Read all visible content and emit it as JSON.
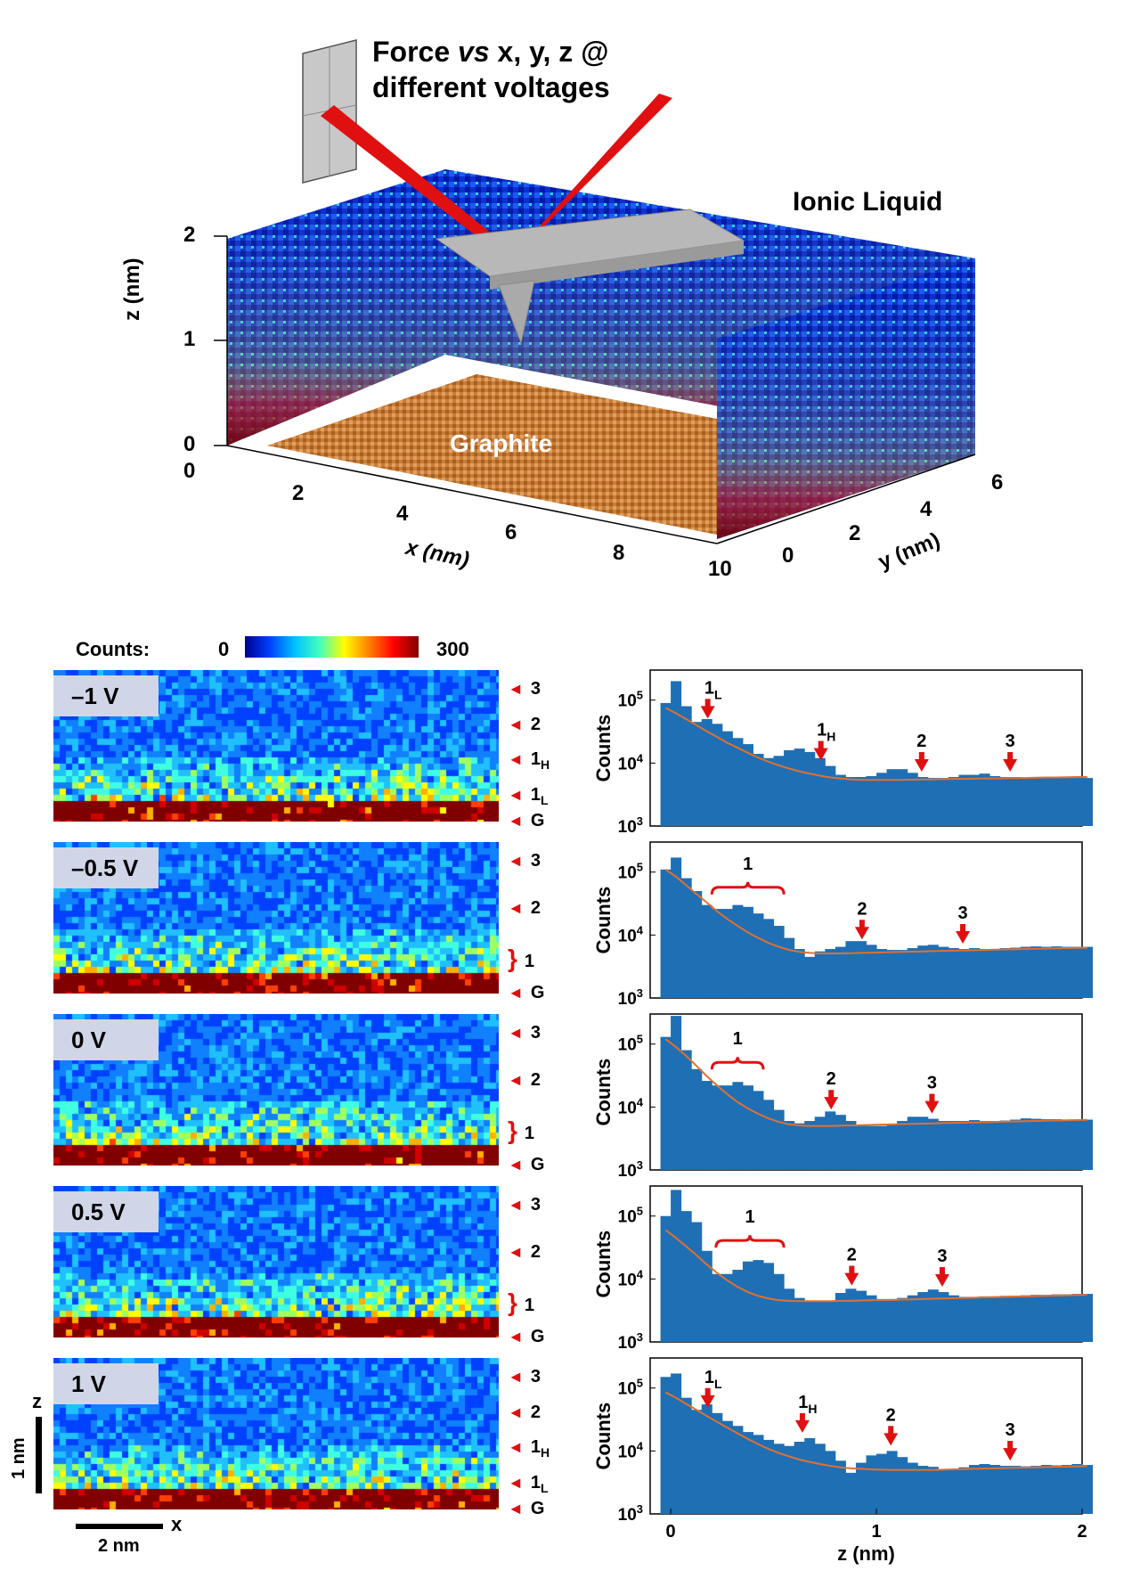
{
  "top": {
    "title_line1": "Force ",
    "title_vs": "vs",
    "title_line1_rest": " x, y, z @",
    "title_line2": "different voltages",
    "ionic_label": "Ionic Liquid",
    "graphite_label": "Graphite",
    "z_axis": {
      "label": "z (nm)",
      "ticks": [
        "2",
        "1",
        "0"
      ]
    },
    "x_axis": {
      "label": "x (nm)",
      "ticks": [
        "0",
        "2",
        "4",
        "6",
        "8",
        "10"
      ]
    },
    "y_axis": {
      "label": "y (nm)",
      "ticks": [
        "0",
        "2",
        "4",
        "6"
      ]
    }
  },
  "colorbar": {
    "label": "Counts:",
    "min": "0",
    "max": "300"
  },
  "scale": {
    "z_label": "z",
    "z_bar": "1 nm",
    "x_label": "x",
    "x_bar": "2 nm"
  },
  "panels": [
    {
      "voltage": "–1 V",
      "markers": [
        {
          "text": "3",
          "sub": ""
        },
        {
          "text": "2",
          "sub": ""
        },
        {
          "text": "1",
          "sub": "H"
        },
        {
          "text": "1",
          "sub": "L"
        },
        {
          "text": "G",
          "sub": ""
        }
      ]
    },
    {
      "voltage": "–0.5 V",
      "markers": [
        {
          "text": "3",
          "sub": ""
        },
        {
          "text": "2",
          "sub": ""
        },
        {
          "text": "1",
          "sub": "",
          "bracket": true
        },
        {
          "text": "G",
          "sub": ""
        }
      ]
    },
    {
      "voltage": "0 V",
      "markers": [
        {
          "text": "3",
          "sub": ""
        },
        {
          "text": "2",
          "sub": ""
        },
        {
          "text": "1",
          "sub": "",
          "bracket": true
        },
        {
          "text": "G",
          "sub": ""
        }
      ]
    },
    {
      "voltage": "0.5 V",
      "markers": [
        {
          "text": "3",
          "sub": ""
        },
        {
          "text": "2",
          "sub": ""
        },
        {
          "text": "1",
          "sub": "",
          "bracket": true
        },
        {
          "text": "G",
          "sub": ""
        }
      ]
    },
    {
      "voltage": "1 V",
      "markers": [
        {
          "text": "3",
          "sub": ""
        },
        {
          "text": "2",
          "sub": ""
        },
        {
          "text": "1",
          "sub": "H"
        },
        {
          "text": "1",
          "sub": "L"
        },
        {
          "text": "G",
          "sub": ""
        }
      ]
    }
  ],
  "chart_data": [
    {
      "type": "bar",
      "ylabel": "Counts",
      "yscale": "log",
      "ylim": [
        1000,
        300000
      ],
      "xlim": [
        -0.1,
        2
      ],
      "yticks": [
        "10^5",
        "10^4",
        "10^3"
      ],
      "annotations": [
        {
          "text": "1",
          "sub": "L",
          "x": 0.18
        },
        {
          "text": "1",
          "sub": "H",
          "x": 0.73
        },
        {
          "text": "2",
          "x": 1.22
        },
        {
          "text": "3",
          "x": 1.65
        }
      ],
      "z": [
        -0.05,
        0.0,
        0.05,
        0.1,
        0.15,
        0.2,
        0.25,
        0.3,
        0.35,
        0.4,
        0.45,
        0.5,
        0.55,
        0.6,
        0.65,
        0.7,
        0.75,
        0.8,
        0.85,
        0.9,
        0.95,
        1.0,
        1.05,
        1.1,
        1.15,
        1.2,
        1.25,
        1.3,
        1.35,
        1.4,
        1.45,
        1.5,
        1.55,
        1.6,
        1.65,
        1.7,
        1.75,
        1.8,
        1.85,
        1.9,
        1.95,
        2.0
      ],
      "counts": [
        90000,
        200000,
        80000,
        45000,
        50000,
        42000,
        32000,
        25000,
        20000,
        14000,
        12000,
        13000,
        16000,
        17000,
        15000,
        12000,
        9000,
        6500,
        6000,
        6000,
        6200,
        7000,
        8000,
        8000,
        7000,
        6000,
        5800,
        5800,
        6000,
        6500,
        6500,
        6800,
        6200,
        6000,
        6000,
        5900,
        5900,
        5800,
        5800,
        5800,
        5800,
        5800
      ],
      "fit": [
        75000,
        62000,
        50000,
        40000,
        32000,
        26000,
        21000,
        17500,
        14500,
        12200,
        10500,
        9200,
        8200,
        7400,
        6800,
        6300,
        5900,
        5700,
        5500,
        5400,
        5400,
        5400,
        5400,
        5400,
        5450,
        5500,
        5500,
        5550,
        5600,
        5600,
        5650,
        5700,
        5700,
        5750,
        5800,
        5800,
        5850,
        5900,
        5900,
        5950,
        6000,
        6000
      ]
    },
    {
      "type": "bar",
      "ylabel": "Counts",
      "yscale": "log",
      "ylim": [
        1000,
        300000
      ],
      "xlim": [
        -0.1,
        2
      ],
      "yticks": [
        "10^5",
        "10^4",
        "10^3"
      ],
      "annotations": [
        {
          "text": "1",
          "x": 0.35,
          "bracket": [
            0.2,
            0.55
          ]
        },
        {
          "text": "2",
          "x": 0.93
        },
        {
          "text": "3",
          "x": 1.42
        }
      ],
      "z": [
        -0.05,
        0.0,
        0.05,
        0.1,
        0.15,
        0.2,
        0.25,
        0.3,
        0.35,
        0.4,
        0.45,
        0.5,
        0.55,
        0.6,
        0.65,
        0.7,
        0.75,
        0.8,
        0.85,
        0.9,
        0.95,
        1.0,
        1.05,
        1.1,
        1.15,
        1.2,
        1.25,
        1.3,
        1.35,
        1.4,
        1.45,
        1.5,
        1.55,
        1.6,
        1.65,
        1.7,
        1.75,
        1.8,
        1.85,
        1.9,
        1.95,
        2.0
      ],
      "counts": [
        110000,
        170000,
        80000,
        50000,
        30000,
        26000,
        26000,
        30000,
        28000,
        22000,
        18000,
        14000,
        9000,
        6000,
        4500,
        5500,
        6000,
        6500,
        8000,
        8000,
        7000,
        6000,
        5800,
        5800,
        6200,
        6800,
        7000,
        6500,
        6200,
        6000,
        6200,
        6000,
        6000,
        6200,
        6300,
        6500,
        6600,
        6500,
        6600,
        6500,
        6500,
        6500
      ],
      "fit": [
        110000,
        85000,
        62000,
        45000,
        33000,
        24000,
        18000,
        14000,
        11000,
        9000,
        7500,
        6500,
        5800,
        5400,
        5200,
        5100,
        5100,
        5100,
        5150,
        5200,
        5250,
        5300,
        5350,
        5400,
        5450,
        5500,
        5550,
        5600,
        5650,
        5700,
        5750,
        5800,
        5850,
        5900,
        5950,
        6000,
        6050,
        6100,
        6150,
        6200,
        6250,
        6300
      ]
    },
    {
      "type": "bar",
      "ylabel": "Counts",
      "yscale": "log",
      "ylim": [
        1000,
        300000
      ],
      "xlim": [
        -0.1,
        2
      ],
      "yticks": [
        "10^5",
        "10^4",
        "10^3"
      ],
      "annotations": [
        {
          "text": "1",
          "x": 0.32,
          "bracket": [
            0.2,
            0.45
          ]
        },
        {
          "text": "2",
          "x": 0.78
        },
        {
          "text": "3",
          "x": 1.27
        }
      ],
      "z": [
        -0.05,
        0.0,
        0.05,
        0.1,
        0.15,
        0.2,
        0.25,
        0.3,
        0.35,
        0.4,
        0.45,
        0.5,
        0.55,
        0.6,
        0.65,
        0.7,
        0.75,
        0.8,
        0.85,
        0.9,
        0.95,
        1.0,
        1.05,
        1.1,
        1.15,
        1.2,
        1.25,
        1.3,
        1.35,
        1.4,
        1.45,
        1.5,
        1.55,
        1.6,
        1.65,
        1.7,
        1.75,
        1.8,
        1.85,
        1.9,
        1.95,
        2.0
      ],
      "counts": [
        130000,
        280000,
        80000,
        40000,
        26000,
        22000,
        22000,
        25000,
        22000,
        18000,
        13000,
        9000,
        6000,
        5500,
        6000,
        7000,
        8500,
        7500,
        6000,
        5200,
        5000,
        5000,
        5200,
        6000,
        7000,
        7000,
        6500,
        6000,
        6000,
        6000,
        6200,
        6000,
        6000,
        6100,
        6300,
        6600,
        6500,
        6400,
        6400,
        6300,
        6300,
        6300
      ],
      "fit": [
        120000,
        90000,
        65000,
        45000,
        31000,
        22000,
        16000,
        12000,
        9500,
        7800,
        6600,
        5800,
        5300,
        5100,
        5000,
        5000,
        5000,
        5050,
        5100,
        5150,
        5200,
        5250,
        5300,
        5350,
        5400,
        5450,
        5500,
        5550,
        5600,
        5650,
        5700,
        5750,
        5800,
        5850,
        5900,
        5950,
        6000,
        6050,
        6100,
        6150,
        6200,
        6250
      ]
    },
    {
      "type": "bar",
      "ylabel": "Counts",
      "yscale": "log",
      "ylim": [
        1000,
        300000
      ],
      "xlim": [
        -0.1,
        2
      ],
      "yticks": [
        "10^5",
        "10^4",
        "10^3"
      ],
      "annotations": [
        {
          "text": "1",
          "x": 0.38,
          "bracket": [
            0.22,
            0.55
          ]
        },
        {
          "text": "2",
          "x": 0.88
        },
        {
          "text": "3",
          "x": 1.32
        }
      ],
      "z": [
        -0.05,
        0.0,
        0.05,
        0.1,
        0.15,
        0.2,
        0.25,
        0.3,
        0.35,
        0.4,
        0.45,
        0.5,
        0.55,
        0.6,
        0.65,
        0.7,
        0.75,
        0.8,
        0.85,
        0.9,
        0.95,
        1.0,
        1.05,
        1.1,
        1.15,
        1.2,
        1.25,
        1.3,
        1.35,
        1.4,
        1.45,
        1.5,
        1.55,
        1.6,
        1.65,
        1.7,
        1.75,
        1.8,
        1.85,
        1.9,
        1.95,
        2.0
      ],
      "counts": [
        100000,
        260000,
        120000,
        80000,
        28000,
        12000,
        12000,
        14000,
        19000,
        20000,
        18000,
        12000,
        7000,
        5000,
        4500,
        4500,
        4500,
        6000,
        7000,
        6500,
        5500,
        4800,
        4800,
        5000,
        5500,
        6200,
        6800,
        6200,
        5500,
        5200,
        5200,
        5300,
        5300,
        5400,
        5400,
        5500,
        5600,
        5600,
        5700,
        5700,
        5800,
        5800
      ],
      "fit": [
        60000,
        45000,
        33000,
        24000,
        17000,
        12500,
        9500,
        7500,
        6200,
        5400,
        4900,
        4600,
        4500,
        4450,
        4450,
        4450,
        4450,
        4500,
        4500,
        4550,
        4600,
        4600,
        4650,
        4700,
        4750,
        4800,
        4850,
        4900,
        4950,
        5000,
        5050,
        5100,
        5150,
        5200,
        5250,
        5300,
        5350,
        5400,
        5450,
        5500,
        5550,
        5600
      ]
    },
    {
      "type": "bar",
      "ylabel": "Counts",
      "yscale": "log",
      "ylim": [
        1000,
        300000
      ],
      "xlim": [
        -0.1,
        2
      ],
      "yticks": [
        "10^5",
        "10^4",
        "10^3"
      ],
      "annotations": [
        {
          "text": "1",
          "sub": "L",
          "x": 0.18
        },
        {
          "text": "1",
          "sub": "H",
          "x": 0.64
        },
        {
          "text": "2",
          "x": 1.07
        },
        {
          "text": "3",
          "x": 1.65
        }
      ],
      "z": [
        -0.05,
        0.0,
        0.05,
        0.1,
        0.15,
        0.2,
        0.25,
        0.3,
        0.35,
        0.4,
        0.45,
        0.5,
        0.55,
        0.6,
        0.65,
        0.7,
        0.75,
        0.8,
        0.85,
        0.9,
        0.95,
        1.0,
        1.05,
        1.1,
        1.15,
        1.2,
        1.25,
        1.3,
        1.35,
        1.4,
        1.45,
        1.5,
        1.55,
        1.6,
        1.65,
        1.7,
        1.75,
        1.8,
        1.85,
        1.9,
        1.95,
        2.0
      ],
      "counts": [
        150000,
        170000,
        70000,
        45000,
        55000,
        40000,
        30000,
        25000,
        20000,
        18000,
        15000,
        13000,
        12000,
        14000,
        16000,
        13000,
        10000,
        7000,
        4500,
        6500,
        8500,
        9000,
        10000,
        8000,
        6500,
        5800,
        5600,
        5000,
        5200,
        5500,
        6000,
        6200,
        6000,
        5800,
        5800,
        5700,
        5800,
        6000,
        5900,
        6000,
        6200,
        6000
      ],
      "fit": [
        85000,
        70000,
        56000,
        45000,
        36000,
        29000,
        23500,
        19000,
        15500,
        12800,
        10800,
        9300,
        8200,
        7300,
        6700,
        6200,
        5800,
        5500,
        5300,
        5200,
        5100,
        5050,
        5000,
        5000,
        5000,
        5000,
        5000,
        5050,
        5100,
        5150,
        5200,
        5250,
        5300,
        5350,
        5400,
        5450,
        5500,
        5550,
        5600,
        5650,
        5700,
        5750
      ]
    }
  ],
  "chart_xaxis": {
    "label": "z (nm)",
    "ticks": [
      "0",
      "1",
      "2"
    ]
  }
}
